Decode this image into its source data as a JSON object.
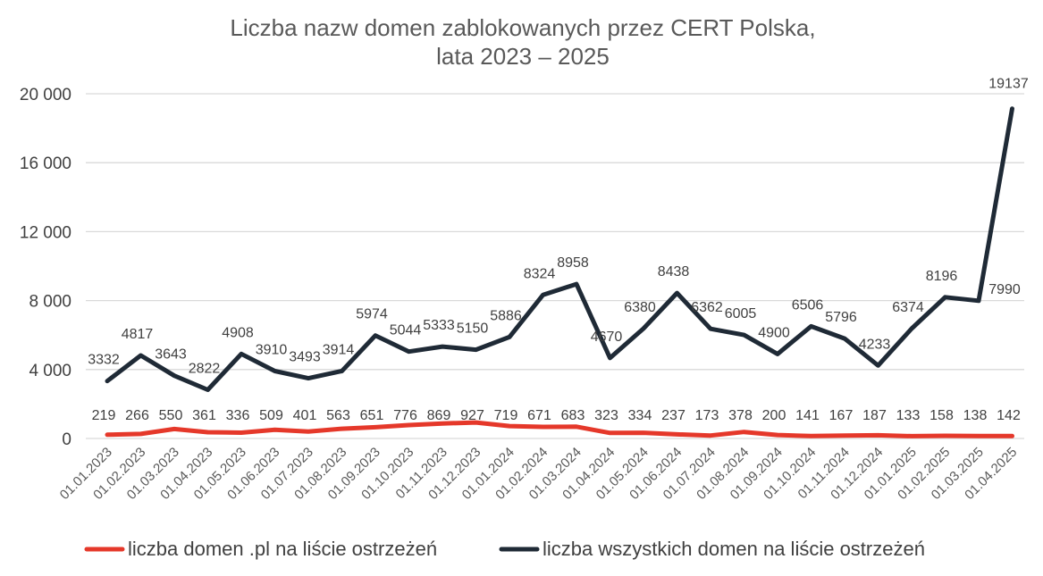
{
  "chart_data": {
    "type": "line",
    "title_line1": "Liczba nazw domen zablokowanych przez CERT Polska,",
    "title_line2": "lata 2023 – 2025",
    "xlabel": "",
    "ylabel": "",
    "ylim": [
      0,
      20000
    ],
    "yticks": [
      0,
      4000,
      8000,
      12000,
      16000,
      20000
    ],
    "ytick_labels": [
      "0",
      "4 000",
      "8 000",
      "12 000",
      "16 000",
      "20 000"
    ],
    "grid": true,
    "legend_position": "bottom",
    "categories": [
      "01.01.2023",
      "01.02.2023",
      "01.03.2023",
      "01.04.2023",
      "01.05.2023",
      "01.06.2023",
      "01.07.2023",
      "01.08.2023",
      "01.09.2023",
      "01.10.2023",
      "01.11.2023",
      "01.12.2023",
      "01.01.2024",
      "01.02.2024",
      "01.03.2024",
      "01.04.2024",
      "01.05.2024",
      "01.06.2024",
      "01.07.2024",
      "01.08.2024",
      "01.09.2024",
      "01.10.2024",
      "01.11.2024",
      "01.12.2024",
      "01.01.2025",
      "01.02.2025",
      "01.03.2025",
      "01.04.2025"
    ],
    "series": [
      {
        "name": "liczba domen .pl na liście ostrzeżeń",
        "color": "#e5382a",
        "values": [
          219,
          266,
          550,
          361,
          336,
          509,
          401,
          563,
          651,
          776,
          869,
          927,
          719,
          671,
          683,
          323,
          334,
          237,
          173,
          378,
          200,
          141,
          167,
          187,
          133,
          158,
          138,
          142
        ]
      },
      {
        "name": "liczba wszystkich domen na liście ostrzeżeń",
        "color": "#1f2a36",
        "values": [
          3332,
          4817,
          3643,
          2822,
          4908,
          3910,
          3493,
          3914,
          5974,
          5044,
          5333,
          5150,
          5886,
          8324,
          8958,
          4670,
          6380,
          8438,
          6362,
          6005,
          4900,
          6506,
          5796,
          4233,
          6374,
          8196,
          7990,
          19137
        ]
      }
    ]
  }
}
